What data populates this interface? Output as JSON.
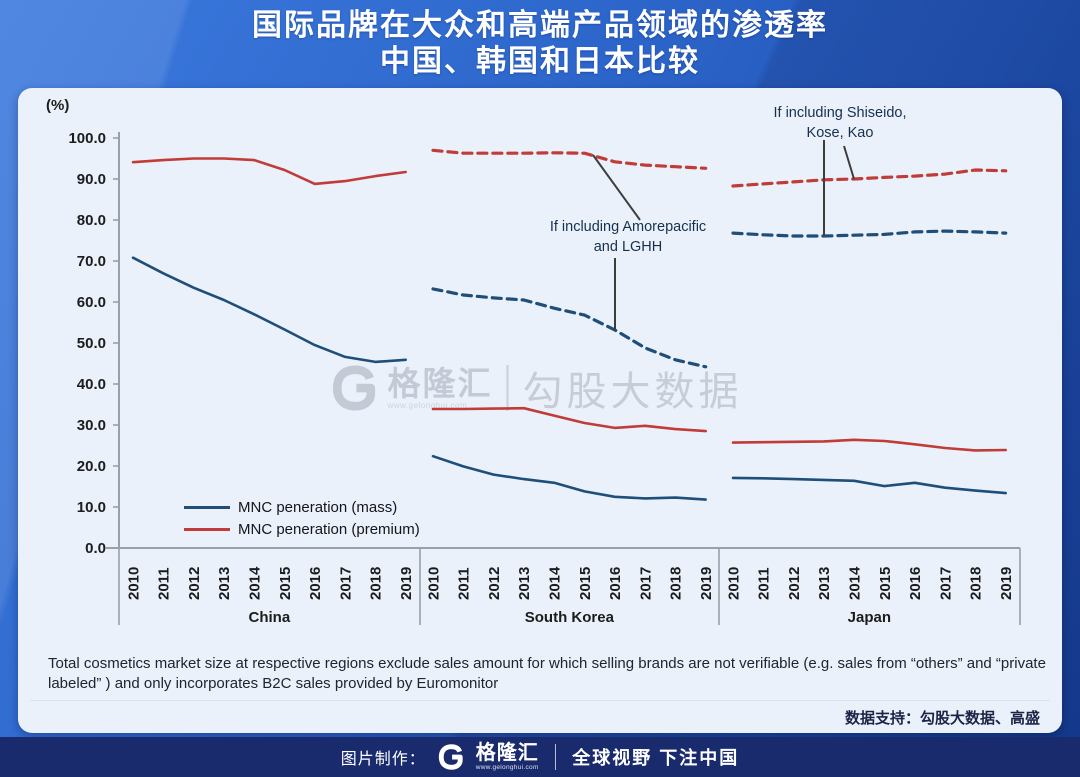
{
  "header": {
    "title_line1": "国际品牌在大众和高端产品领域的渗透率",
    "title_line2": "中国、韩国和日本比较"
  },
  "chart_data": {
    "type": "line",
    "unit_label": "(%)",
    "ylim": [
      0,
      100
    ],
    "ytick_step": 10,
    "grid": false,
    "years": [
      "2010",
      "2011",
      "2012",
      "2013",
      "2014",
      "2015",
      "2016",
      "2017",
      "2018",
      "2019"
    ],
    "colors": {
      "mass": "#1f4e79",
      "premium": "#c13c38",
      "axis": "#9aa0a8",
      "annotation_line": "#3d3d3d"
    },
    "legend": [
      {
        "label": "MNC peneration (mass)",
        "series": "mass"
      },
      {
        "label": "MNC peneration (premium)",
        "series": "premium"
      }
    ],
    "legend_position": "bottom-left-inside",
    "panels": [
      {
        "name": "China",
        "series": [
          {
            "key": "mass",
            "style": "solid",
            "name": "MNC peneration (mass)",
            "values": [
              70.8,
              67.0,
              63.5,
              60.5,
              57.0,
              53.3,
              49.5,
              46.6,
              45.4,
              45.9
            ]
          },
          {
            "key": "premium",
            "style": "solid",
            "name": "MNC peneration (premium)",
            "values": [
              94.1,
              94.6,
              95.0,
              95.0,
              94.6,
              92.2,
              88.8,
              89.5,
              90.7,
              91.7
            ]
          }
        ]
      },
      {
        "name": "South Korea",
        "series": [
          {
            "key": "mass",
            "style": "solid",
            "name": "MNC peneration (mass)",
            "values": [
              22.4,
              19.9,
              17.9,
              16.8,
              15.9,
              13.8,
              12.5,
              12.1,
              12.3,
              11.8
            ]
          },
          {
            "key": "premium",
            "style": "solid",
            "name": "MNC peneration (premium)",
            "values": [
              33.9,
              33.9,
              34.0,
              34.1,
              32.3,
              30.5,
              29.3,
              29.8,
              29.0,
              28.5
            ]
          },
          {
            "key": "mass",
            "style": "dashed",
            "name": "MNC peneration (mass) if including Amorepacific and LGHH",
            "values": [
              63.2,
              61.7,
              61.0,
              60.5,
              58.5,
              56.8,
              53.2,
              48.8,
              45.9,
              44.2
            ]
          },
          {
            "key": "premium",
            "style": "dashed",
            "name": "MNC peneration (premium) if including Amorepacific and LGHH",
            "values": [
              97.0,
              96.3,
              96.3,
              96.3,
              96.4,
              96.3,
              94.2,
              93.4,
              93.0,
              92.6
            ]
          }
        ]
      },
      {
        "name": "Japan",
        "series": [
          {
            "key": "mass",
            "style": "solid",
            "name": "MNC peneration (mass)",
            "values": [
              17.1,
              17.0,
              16.8,
              16.6,
              16.4,
              15.1,
              15.9,
              14.7,
              14.0,
              13.4
            ]
          },
          {
            "key": "premium",
            "style": "solid",
            "name": "MNC peneration (premium)",
            "values": [
              25.7,
              25.8,
              25.9,
              26.0,
              26.4,
              26.1,
              25.3,
              24.4,
              23.8,
              23.9
            ]
          },
          {
            "key": "mass",
            "style": "dashed",
            "name": "MNC peneration (mass) if including Shiseido, Kose, Kao",
            "values": [
              76.8,
              76.4,
              76.1,
              76.1,
              76.3,
              76.5,
              77.1,
              77.3,
              77.1,
              76.8
            ]
          },
          {
            "key": "premium",
            "style": "dashed",
            "name": "MNC peneration (premium) if including Shiseido, Kose, Kao",
            "values": [
              88.3,
              88.8,
              89.3,
              89.8,
              90.0,
              90.4,
              90.7,
              91.2,
              92.2,
              92.0
            ]
          }
        ]
      }
    ],
    "annotations": [
      {
        "id": "korea",
        "line1": "If including Amorepacific",
        "line2": "and LGHH"
      },
      {
        "id": "japan",
        "line1": "If including Shiseido,",
        "line2": "Kose, Kao"
      }
    ]
  },
  "watermark": {
    "brand": "格隆汇",
    "url": "www.gelonghui.com",
    "product": "勾股大数据"
  },
  "footnote": "Total cosmetics market size at respective regions exclude sales amount for which selling brands are not verifiable (e.g. sales from “others” and “private labeled” ) and only incorporates B2C sales provided by Euromonitor",
  "data_support": "数据支持：勾股大数据、高盛",
  "footer": {
    "made_by": "图片制作：",
    "brand": "格隆汇",
    "url": "www.gelonghui.com",
    "slogan": "全球视野 下注中国"
  }
}
